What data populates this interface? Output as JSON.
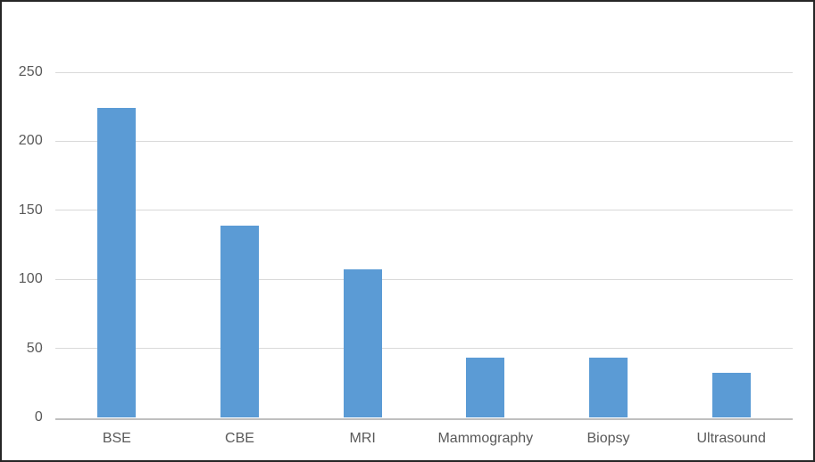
{
  "chart_data": {
    "type": "bar",
    "title": "",
    "xlabel": "",
    "ylabel": "",
    "categories": [
      "BSE",
      "CBE",
      "MRI",
      "Mammography",
      "Biopsy",
      "Ultrasound"
    ],
    "values": [
      224,
      139,
      107,
      43,
      43,
      32
    ],
    "ylim": [
      0,
      250
    ],
    "ytick_interval": 50,
    "yticks": [
      0,
      50,
      100,
      150,
      200,
      250
    ],
    "grid": true,
    "legend": false,
    "colors": {
      "bar": "#5B9BD5",
      "gridline": "#D9D9D9",
      "axis_line": "#BFBFBF",
      "tick_label": "#595959",
      "frame_border": "#262626",
      "background": "#FFFFFF"
    }
  }
}
